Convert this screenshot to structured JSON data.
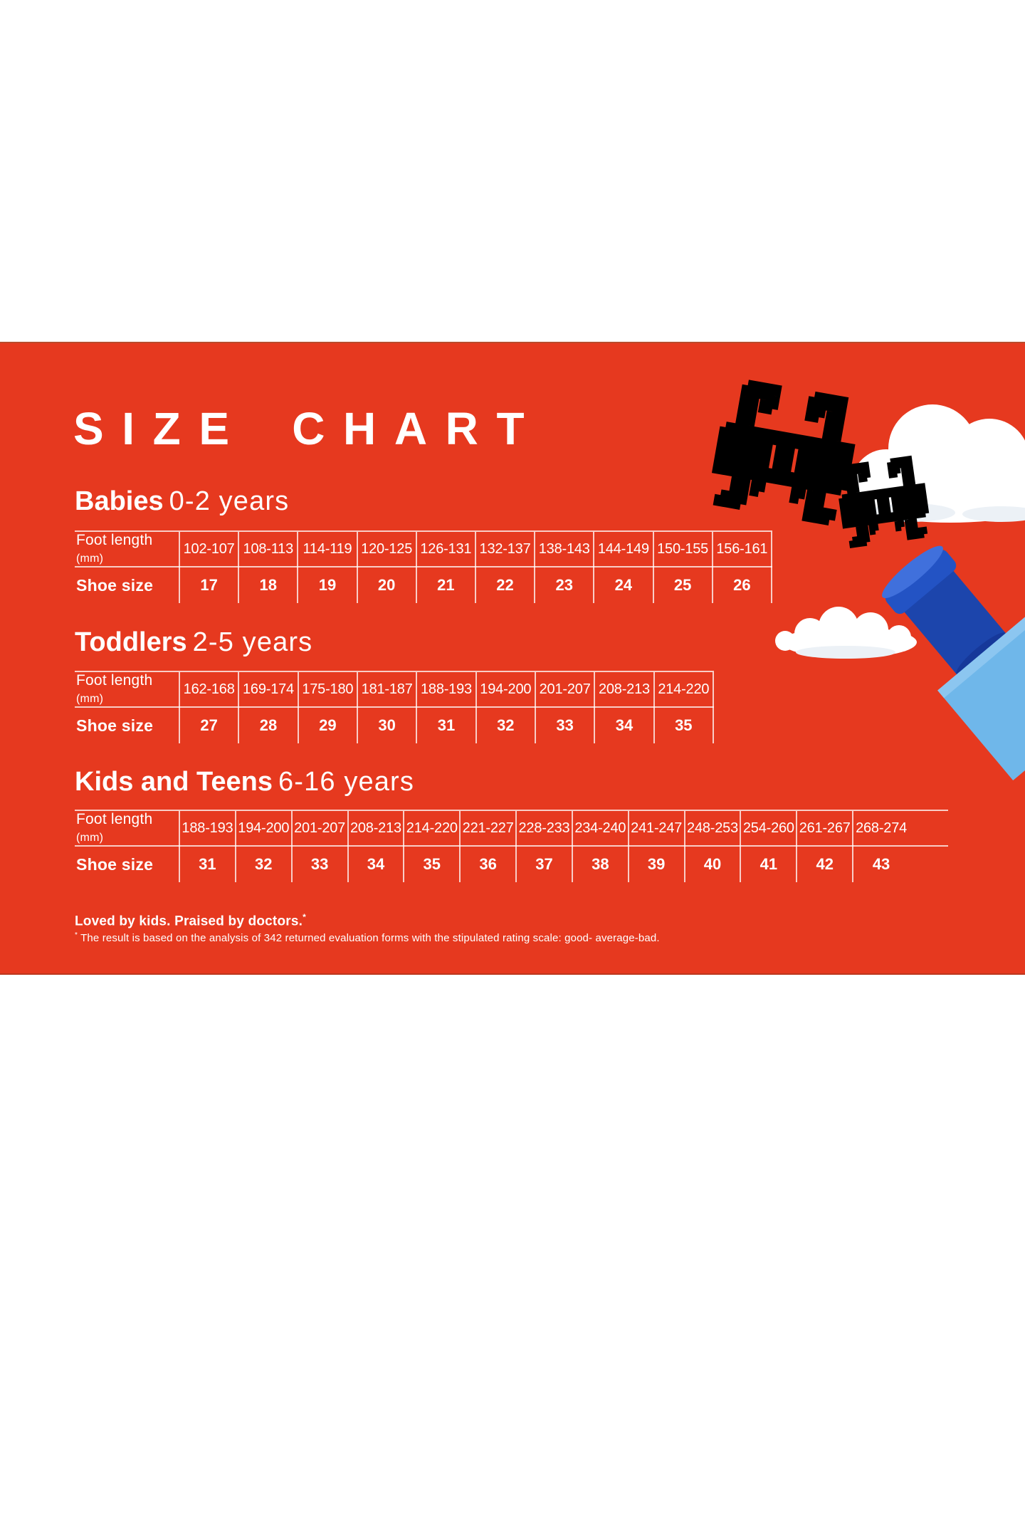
{
  "page": {
    "title": "SIZE CHART"
  },
  "table_labels": {
    "foot_length": "Foot length",
    "foot_length_unit": "(mm)",
    "shoe_size": "Shoe size"
  },
  "sections": [
    {
      "name": "Babies",
      "age": "0-2 years",
      "foot_lengths": [
        "102-107",
        "108-113",
        "114-119",
        "120-125",
        "126-131",
        "132-137",
        "138-143",
        "144-149",
        "150-155",
        "156-161"
      ],
      "shoe_sizes": [
        "17",
        "18",
        "19",
        "20",
        "21",
        "22",
        "23",
        "24",
        "25",
        "26"
      ]
    },
    {
      "name": "Toddlers",
      "age": "2-5 years",
      "foot_lengths": [
        "162-168",
        "169-174",
        "175-180",
        "181-187",
        "188-193",
        "194-200",
        "201-207",
        "208-213",
        "214-220"
      ],
      "shoe_sizes": [
        "27",
        "28",
        "29",
        "30",
        "31",
        "32",
        "33",
        "34",
        "35"
      ]
    },
    {
      "name": "Kids and Teens",
      "age": "6-16 years",
      "foot_lengths": [
        "188-193",
        "194-200",
        "201-207",
        "208-213",
        "214-220",
        "221-227",
        "228-233",
        "234-240",
        "241-247",
        "248-253",
        "254-260",
        "261-267",
        "268-274"
      ],
      "shoe_sizes": [
        "31",
        "32",
        "33",
        "34",
        "35",
        "36",
        "37",
        "38",
        "39",
        "40",
        "41",
        "42",
        "43"
      ]
    }
  ],
  "footer": {
    "tagline": "Loved by kids. Praised by doctors.",
    "asterisk": "*",
    "note": "The result is based on the analysis of 342 returned evaluation forms with the stipulated rating scale: good- average-bad."
  },
  "colors": {
    "background_red": "#E6391F",
    "text": "#FFFFFF",
    "table_line": "rgba(255,255,255,0.75)",
    "brick_blue": "#5B94E6",
    "brick_blue_shadow": "#2F5FBE",
    "brick_yellow": "#E9DC55",
    "brick_yellow_shadow": "#C8B72E",
    "rocket_dark_blue": "#1C45AC",
    "rocket_light_blue": "#6FB7EA",
    "cloud_white": "#FFFFFF"
  }
}
